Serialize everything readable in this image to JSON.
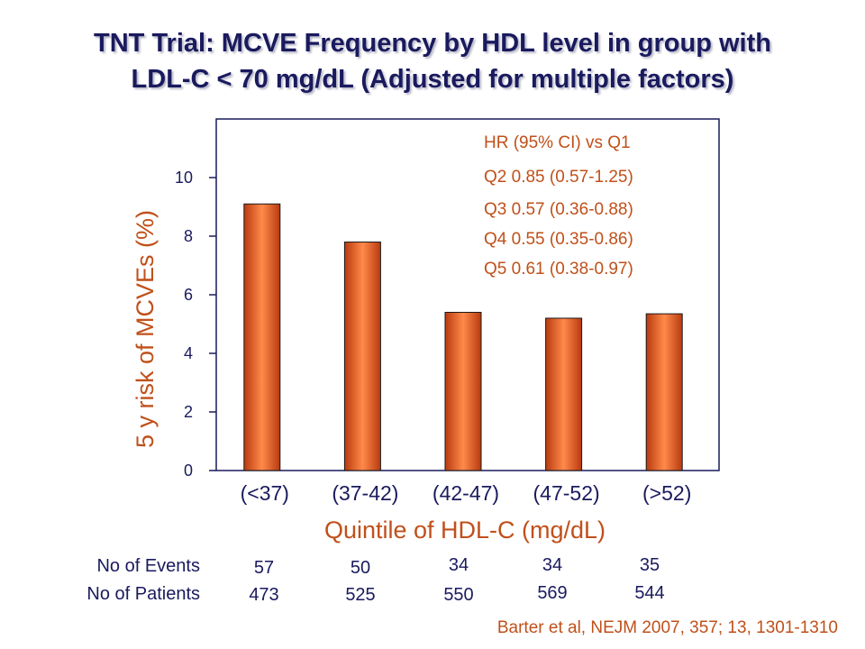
{
  "title_line1": "TNT Trial: MCVE Frequency by HDL level in group with",
  "title_line2": "LDL-C < 70 mg/dL (Adjusted for multiple factors)",
  "chart_data": {
    "type": "bar",
    "categories": [
      "(<37)",
      "(37-42)",
      "(42-47)",
      "(47-52)",
      "(>52)"
    ],
    "values": [
      9.1,
      7.8,
      5.4,
      5.2,
      5.35
    ],
    "xlabel": "Quintile of HDL-C (mg/dL)",
    "ylabel": "5 y risk of MCVEs (%)",
    "ylim": [
      0,
      12
    ],
    "yticks": [
      0,
      2,
      4,
      6,
      8,
      10
    ],
    "annotations": [
      "HR (95% CI) vs Q1",
      "Q2 0.85 (0.57-1.25)",
      "Q3 0.57 (0.36-0.88)",
      "Q4 0.55 (0.35-0.86)",
      "Q5 0.61 (0.38-0.97)"
    ],
    "grid": false
  },
  "table": {
    "events_label": "No of Events",
    "patients_label": "No of Patients",
    "events": [
      "57",
      "50",
      "34",
      "34",
      "35"
    ],
    "patients": [
      "473",
      "525",
      "550",
      "569",
      "544"
    ]
  },
  "citation": "Barter et al, NEJM 2007, 357; 13, 1301-1310",
  "colors": {
    "title": "#1a1a5e",
    "accent": "#c0501a",
    "bar_dark": "#b83a10",
    "bar_light": "#ff8a4a",
    "axis": "#1a1a5e"
  }
}
